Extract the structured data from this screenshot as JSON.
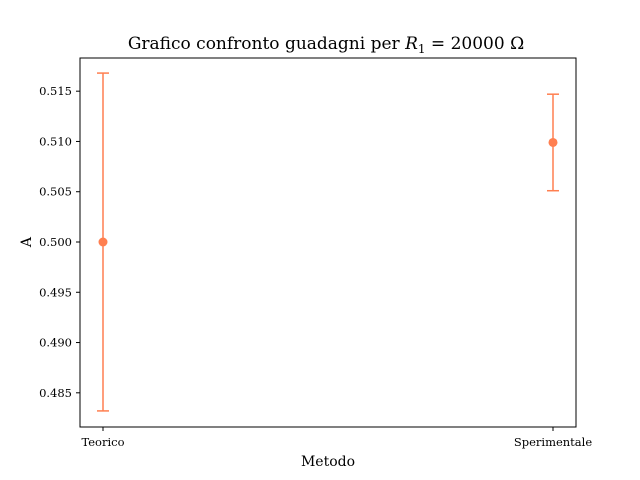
{
  "chart_data": {
    "type": "scatter",
    "title": {
      "prefix": "Grafico confronto guadagni per ",
      "var": "R",
      "sub": "1",
      "suffix": " = 20000 Ω"
    },
    "xlabel": "Metodo",
    "ylabel": "A",
    "categories": [
      "Teorico",
      "Sperimentale"
    ],
    "values": [
      0.5,
      0.5099
    ],
    "errors": [
      0.0168,
      0.0048
    ],
    "ylim": [
      0.4816,
      0.5183
    ],
    "yticks": [
      0.485,
      0.49,
      0.495,
      0.5,
      0.505,
      0.51,
      0.515
    ],
    "ytick_labels": [
      "0.485",
      "0.490",
      "0.495",
      "0.500",
      "0.505",
      "0.510",
      "0.515"
    ],
    "color": "#ff7f50",
    "grid": false,
    "legend": "none"
  }
}
